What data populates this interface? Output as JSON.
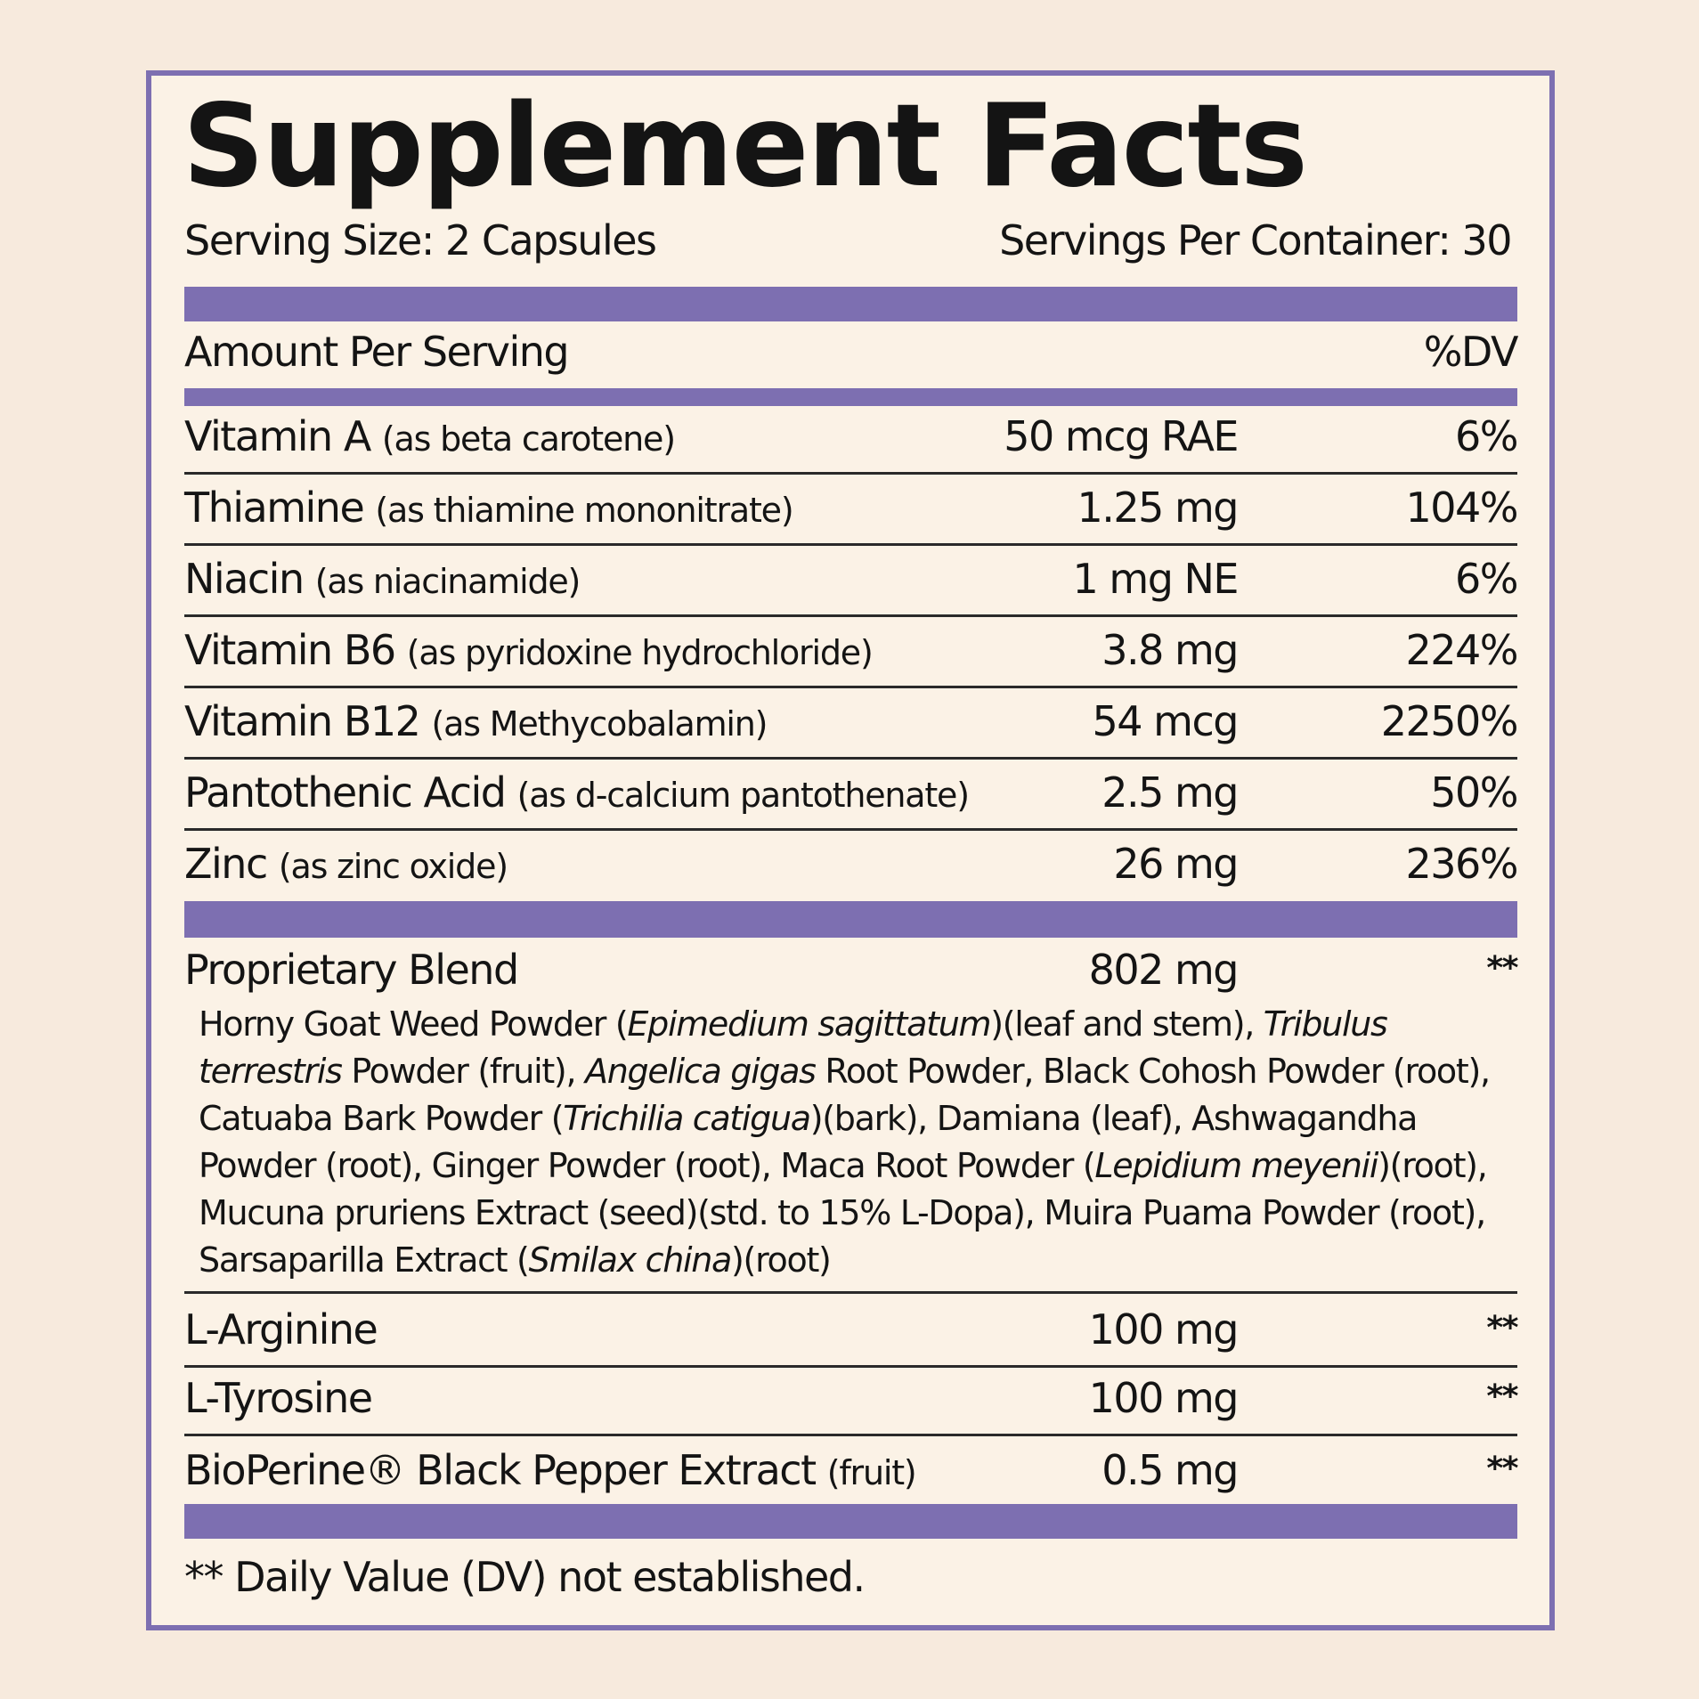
{
  "header": {
    "title": "Supplement Facts",
    "serving_size": "Serving Size: 2 Capsules",
    "servings_per_container": "Servings Per Container: 30"
  },
  "column_header": {
    "amount": "Amount Per Serving",
    "dv": "%DV"
  },
  "vitamins": [
    {
      "name": "Vitamin A",
      "source": "(as beta carotene)",
      "amount": "50 mcg RAE",
      "dv": "6%"
    },
    {
      "name": "Thiamine",
      "source": "(as thiamine mononitrate)",
      "amount": "1.25 mg",
      "dv": "104%"
    },
    {
      "name": "Niacin",
      "source": "(as niacinamide)",
      "amount": "1 mg NE",
      "dv": "6%"
    },
    {
      "name": "Vitamin B6",
      "source": "(as pyridoxine hydrochloride)",
      "amount": "3.8 mg",
      "dv": "224%"
    },
    {
      "name": "Vitamin B12",
      "source": "(as Methycobalamin)",
      "amount": "54 mcg",
      "dv": "2250%"
    },
    {
      "name": "Pantothenic Acid",
      "source": "(as d-calcium pantothenate)",
      "amount": "2.5 mg",
      "dv": "50%"
    },
    {
      "name": "Zinc",
      "source": "(as zinc oxide)",
      "amount": "26 mg",
      "dv": "236%"
    }
  ],
  "blend": {
    "name": "Proprietary Blend",
    "amount": "802 mg",
    "dv": "**",
    "ingredients": [
      {
        "text": "Horny Goat Weed Powder ("
      },
      {
        "text": "Epimedium sagittatum",
        "italic": true
      },
      {
        "text": ")(leaf and stem), "
      },
      {
        "text": "Tribulus terrestris",
        "italic": true
      },
      {
        "text": " Powder (fruit), "
      },
      {
        "text": "Angelica gigas",
        "italic": true
      },
      {
        "text": " Root Powder, Black Cohosh Powder (root), Catuaba Bark Powder ("
      },
      {
        "text": "Trichilia catigua",
        "italic": true
      },
      {
        "text": ")(bark), Damiana (leaf), Ashwagandha Powder (root), Ginger Powder (root), Maca Root Powder ("
      },
      {
        "text": "Lepidium meyenii",
        "italic": true
      },
      {
        "text": ")(root), Mucuna pruriens Extract (seed)(std. to 15% L-Dopa), Muira Puama Powder (root), Sarsaparilla Extract ("
      },
      {
        "text": "Smilax china",
        "italic": true
      },
      {
        "text": ")(root)"
      }
    ]
  },
  "others": [
    {
      "name": "L-Arginine",
      "amount": "100 mg",
      "dv": "**"
    },
    {
      "name": "L-Tyrosine",
      "amount": "100 mg",
      "dv": "**"
    },
    {
      "name": "BioPerine® Black Pepper Extract",
      "source": "(fruit)",
      "amount": "0.5 mg",
      "dv": "**"
    }
  ],
  "footnote": "** Daily Value (DV) not established."
}
